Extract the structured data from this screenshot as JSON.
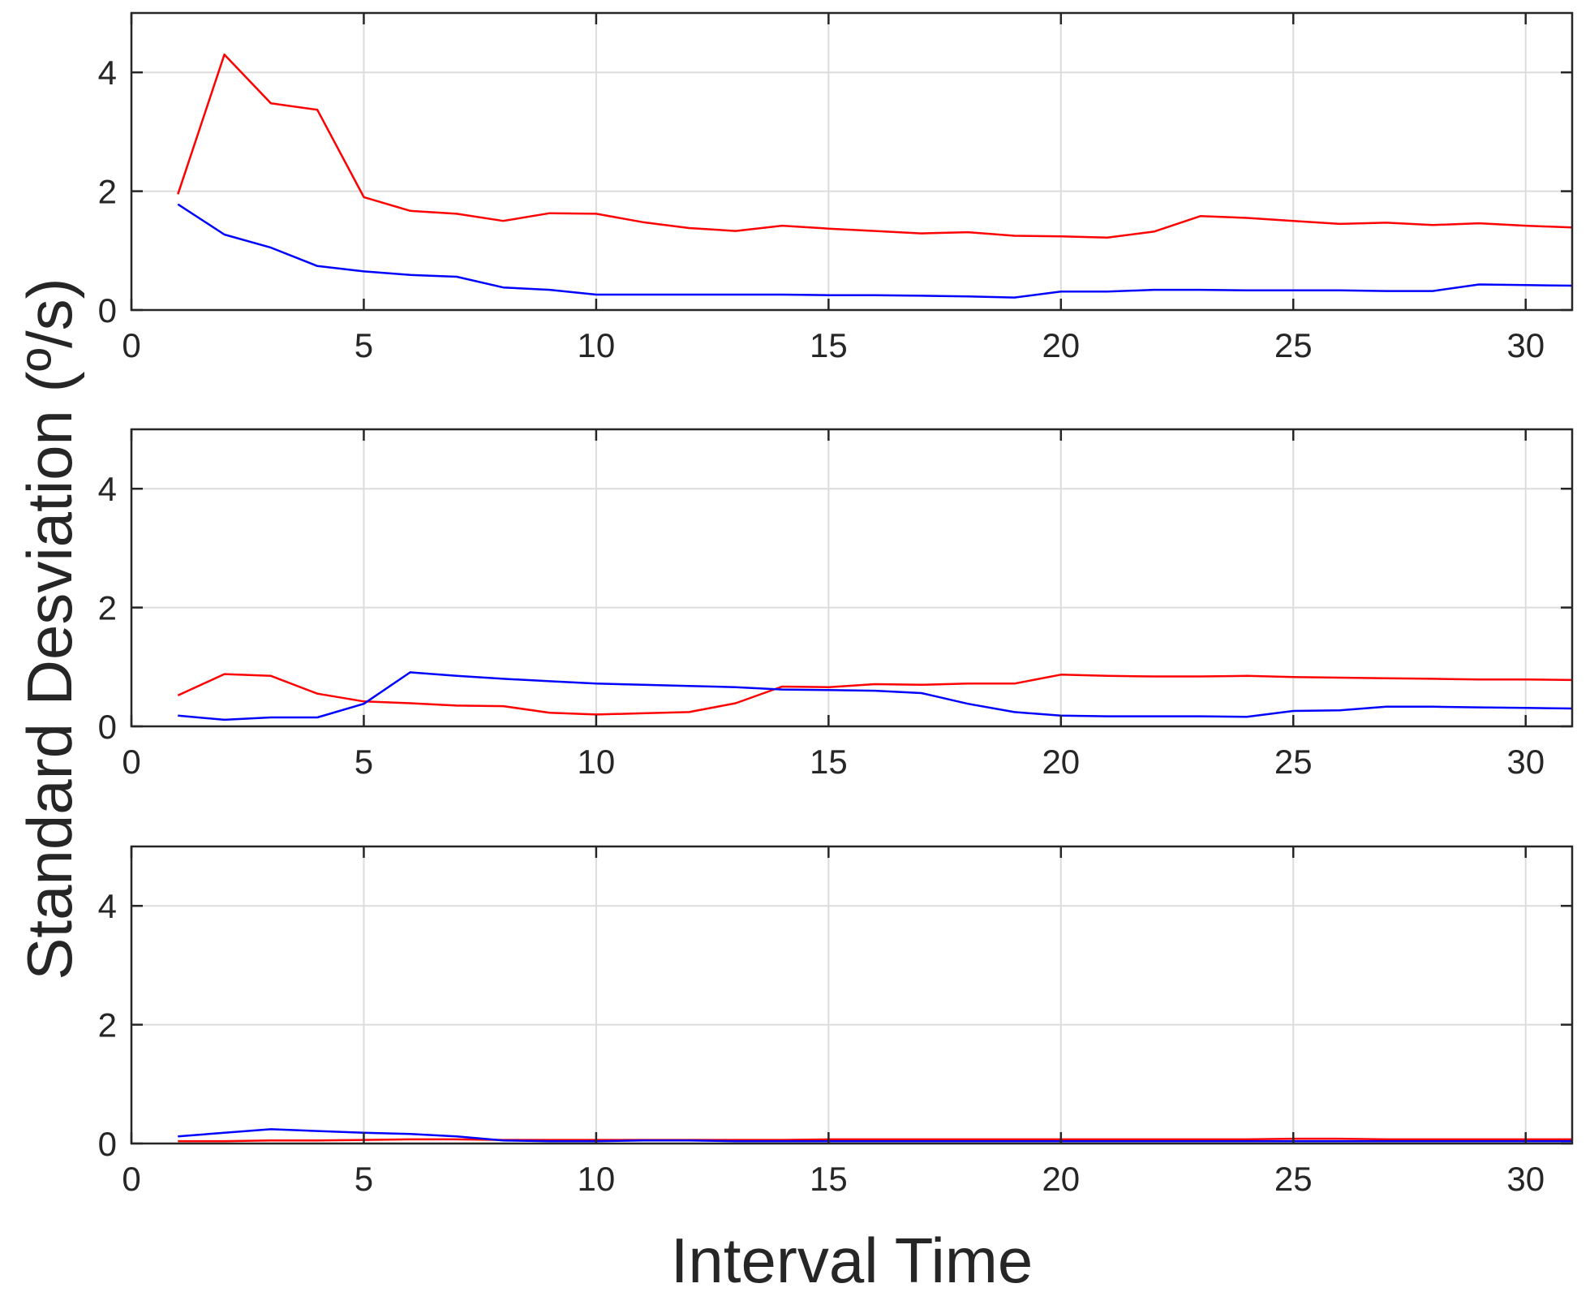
{
  "colors": {
    "series_red": "#ff0000",
    "series_blue": "#0000ff",
    "axis": "#262626",
    "grid": "#dcdcdc"
  },
  "labels": {
    "ylabel": "Standard Desviation (º/s)",
    "xlabel": "Interval Time"
  },
  "chart_data": [
    {
      "type": "line",
      "grid": true,
      "xlim": [
        0,
        31
      ],
      "ylim": [
        0,
        5
      ],
      "xticks": [
        0,
        5,
        10,
        15,
        20,
        25,
        30
      ],
      "yticks": [
        0,
        2,
        4
      ],
      "x": [
        1,
        2,
        3,
        4,
        5,
        6,
        7,
        8,
        9,
        10,
        11,
        12,
        13,
        14,
        15,
        16,
        17,
        18,
        19,
        20,
        21,
        22,
        23,
        24,
        25,
        26,
        27,
        28,
        29,
        30,
        31
      ],
      "series": [
        {
          "color": "#ff0000",
          "values": [
            1.95,
            4.3,
            3.48,
            3.37,
            1.9,
            1.67,
            1.62,
            1.5,
            1.63,
            1.62,
            1.48,
            1.38,
            1.33,
            1.42,
            1.37,
            1.33,
            1.29,
            1.31,
            1.25,
            1.24,
            1.22,
            1.32,
            1.58,
            1.55,
            1.5,
            1.45,
            1.47,
            1.43,
            1.46,
            1.42,
            1.39
          ]
        },
        {
          "color": "#0000ff",
          "values": [
            1.78,
            1.27,
            1.05,
            0.74,
            0.65,
            0.59,
            0.56,
            0.38,
            0.34,
            0.26,
            0.26,
            0.26,
            0.26,
            0.26,
            0.25,
            0.25,
            0.24,
            0.23,
            0.21,
            0.31,
            0.31,
            0.34,
            0.34,
            0.33,
            0.33,
            0.33,
            0.32,
            0.32,
            0.43,
            0.42,
            0.41
          ]
        }
      ]
    },
    {
      "type": "line",
      "grid": true,
      "xlim": [
        0,
        31
      ],
      "ylim": [
        0,
        5
      ],
      "xticks": [
        0,
        5,
        10,
        15,
        20,
        25,
        30
      ],
      "yticks": [
        0,
        2,
        4
      ],
      "x": [
        1,
        2,
        3,
        4,
        5,
        6,
        7,
        8,
        9,
        10,
        11,
        12,
        13,
        14,
        15,
        16,
        17,
        18,
        19,
        20,
        21,
        22,
        23,
        24,
        25,
        26,
        27,
        28,
        29,
        30,
        31
      ],
      "series": [
        {
          "color": "#ff0000",
          "values": [
            0.52,
            0.88,
            0.85,
            0.55,
            0.42,
            0.39,
            0.35,
            0.34,
            0.23,
            0.2,
            0.22,
            0.24,
            0.39,
            0.67,
            0.66,
            0.71,
            0.7,
            0.72,
            0.72,
            0.87,
            0.85,
            0.84,
            0.84,
            0.85,
            0.83,
            0.82,
            0.81,
            0.8,
            0.79,
            0.79,
            0.78
          ]
        },
        {
          "color": "#0000ff",
          "values": [
            0.18,
            0.11,
            0.15,
            0.15,
            0.38,
            0.91,
            0.85,
            0.8,
            0.76,
            0.72,
            0.7,
            0.68,
            0.66,
            0.62,
            0.61,
            0.6,
            0.56,
            0.38,
            0.24,
            0.18,
            0.17,
            0.17,
            0.17,
            0.16,
            0.26,
            0.27,
            0.33,
            0.33,
            0.32,
            0.31,
            0.3
          ]
        }
      ]
    },
    {
      "type": "line",
      "grid": true,
      "xlim": [
        0,
        31
      ],
      "ylim": [
        0,
        5
      ],
      "xticks": [
        0,
        5,
        10,
        15,
        20,
        25,
        30
      ],
      "yticks": [
        0,
        2,
        4
      ],
      "x": [
        1,
        2,
        3,
        4,
        5,
        6,
        7,
        8,
        9,
        10,
        11,
        12,
        13,
        14,
        15,
        16,
        17,
        18,
        19,
        20,
        21,
        22,
        23,
        24,
        25,
        26,
        27,
        28,
        29,
        30,
        31
      ],
      "series": [
        {
          "color": "#ff0000",
          "values": [
            0.04,
            0.04,
            0.05,
            0.05,
            0.06,
            0.07,
            0.07,
            0.06,
            0.06,
            0.06,
            0.06,
            0.06,
            0.06,
            0.06,
            0.07,
            0.07,
            0.07,
            0.07,
            0.07,
            0.07,
            0.07,
            0.07,
            0.07,
            0.07,
            0.08,
            0.08,
            0.07,
            0.07,
            0.07,
            0.07,
            0.07
          ]
        },
        {
          "color": "#0000ff",
          "values": [
            0.12,
            0.18,
            0.24,
            0.21,
            0.18,
            0.16,
            0.12,
            0.05,
            0.04,
            0.04,
            0.05,
            0.05,
            0.04,
            0.04,
            0.04,
            0.04,
            0.04,
            0.04,
            0.04,
            0.04,
            0.04,
            0.04,
            0.04,
            0.04,
            0.04,
            0.04,
            0.04,
            0.04,
            0.04,
            0.04,
            0.04
          ]
        }
      ]
    }
  ]
}
